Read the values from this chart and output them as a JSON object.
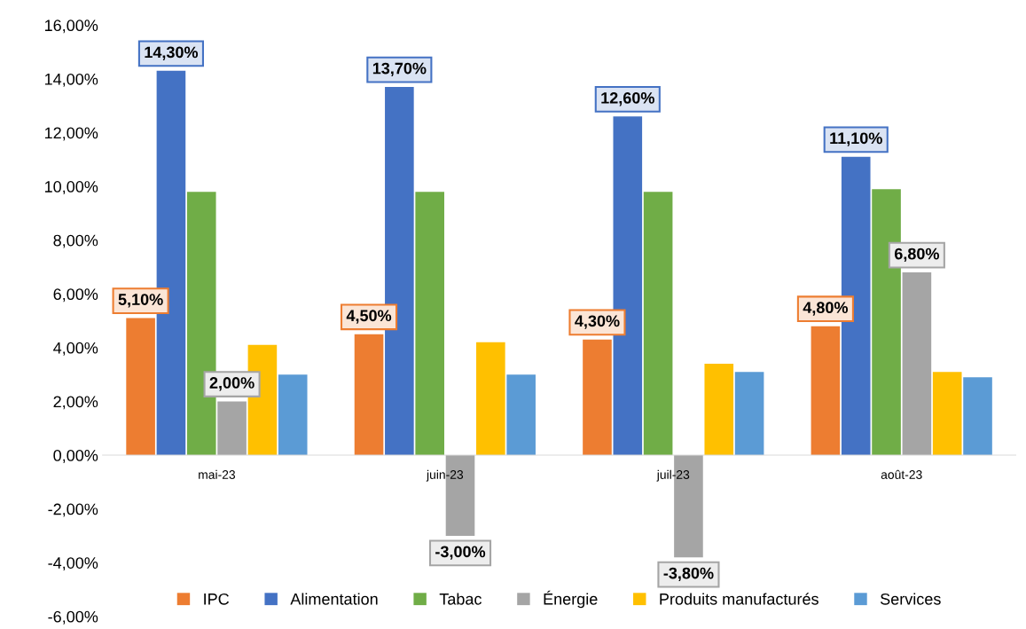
{
  "chart_data": {
    "type": "bar",
    "categories": [
      "mai-23",
      "juin-23",
      "juil-23",
      "août-23"
    ],
    "series": [
      {
        "name": "IPC",
        "color": "#ed7d31",
        "values": [
          5.1,
          4.5,
          4.3,
          4.8
        ],
        "value_labels": [
          "5,10%",
          "4,50%",
          "4,30%",
          "4,80%"
        ]
      },
      {
        "name": "Alimentation",
        "color": "#4472c4",
        "values": [
          14.3,
          13.7,
          12.6,
          11.1
        ],
        "value_labels": [
          "14,30%",
          "13,70%",
          "12,60%",
          "11,10%"
        ]
      },
      {
        "name": "Tabac",
        "color": "#70ad47",
        "values": [
          9.8,
          9.8,
          9.8,
          9.9
        ]
      },
      {
        "name": "Énergie",
        "color": "#a5a5a5",
        "values": [
          2.0,
          -3.0,
          -3.8,
          6.8
        ],
        "value_labels": [
          "2,00%",
          "-3,00%",
          "-3,80%",
          "6,80%"
        ]
      },
      {
        "name": "Produits manufacturés",
        "color": "#ffc000",
        "values": [
          4.1,
          4.2,
          3.4,
          3.1
        ]
      },
      {
        "name": "Services",
        "color": "#5b9bd5",
        "values": [
          3.0,
          3.0,
          3.1,
          2.9
        ]
      }
    ],
    "ylim": [
      -6,
      16
    ],
    "yticks": [
      {
        "value": -6,
        "label": "-6,00%"
      },
      {
        "value": -4,
        "label": "-4,00%"
      },
      {
        "value": -2,
        "label": "-2,00%"
      },
      {
        "value": 0,
        "label": "0,00%"
      },
      {
        "value": 2,
        "label": "2,00%"
      },
      {
        "value": 4,
        "label": "4,00%"
      },
      {
        "value": 6,
        "label": "6,00%"
      },
      {
        "value": 8,
        "label": "8,00%"
      },
      {
        "value": 10,
        "label": "10,00%"
      },
      {
        "value": 12,
        "label": "12,00%"
      },
      {
        "value": 14,
        "label": "14,00%"
      },
      {
        "value": 16,
        "label": "16,00%"
      }
    ],
    "grid": false,
    "legend": "bottom"
  }
}
